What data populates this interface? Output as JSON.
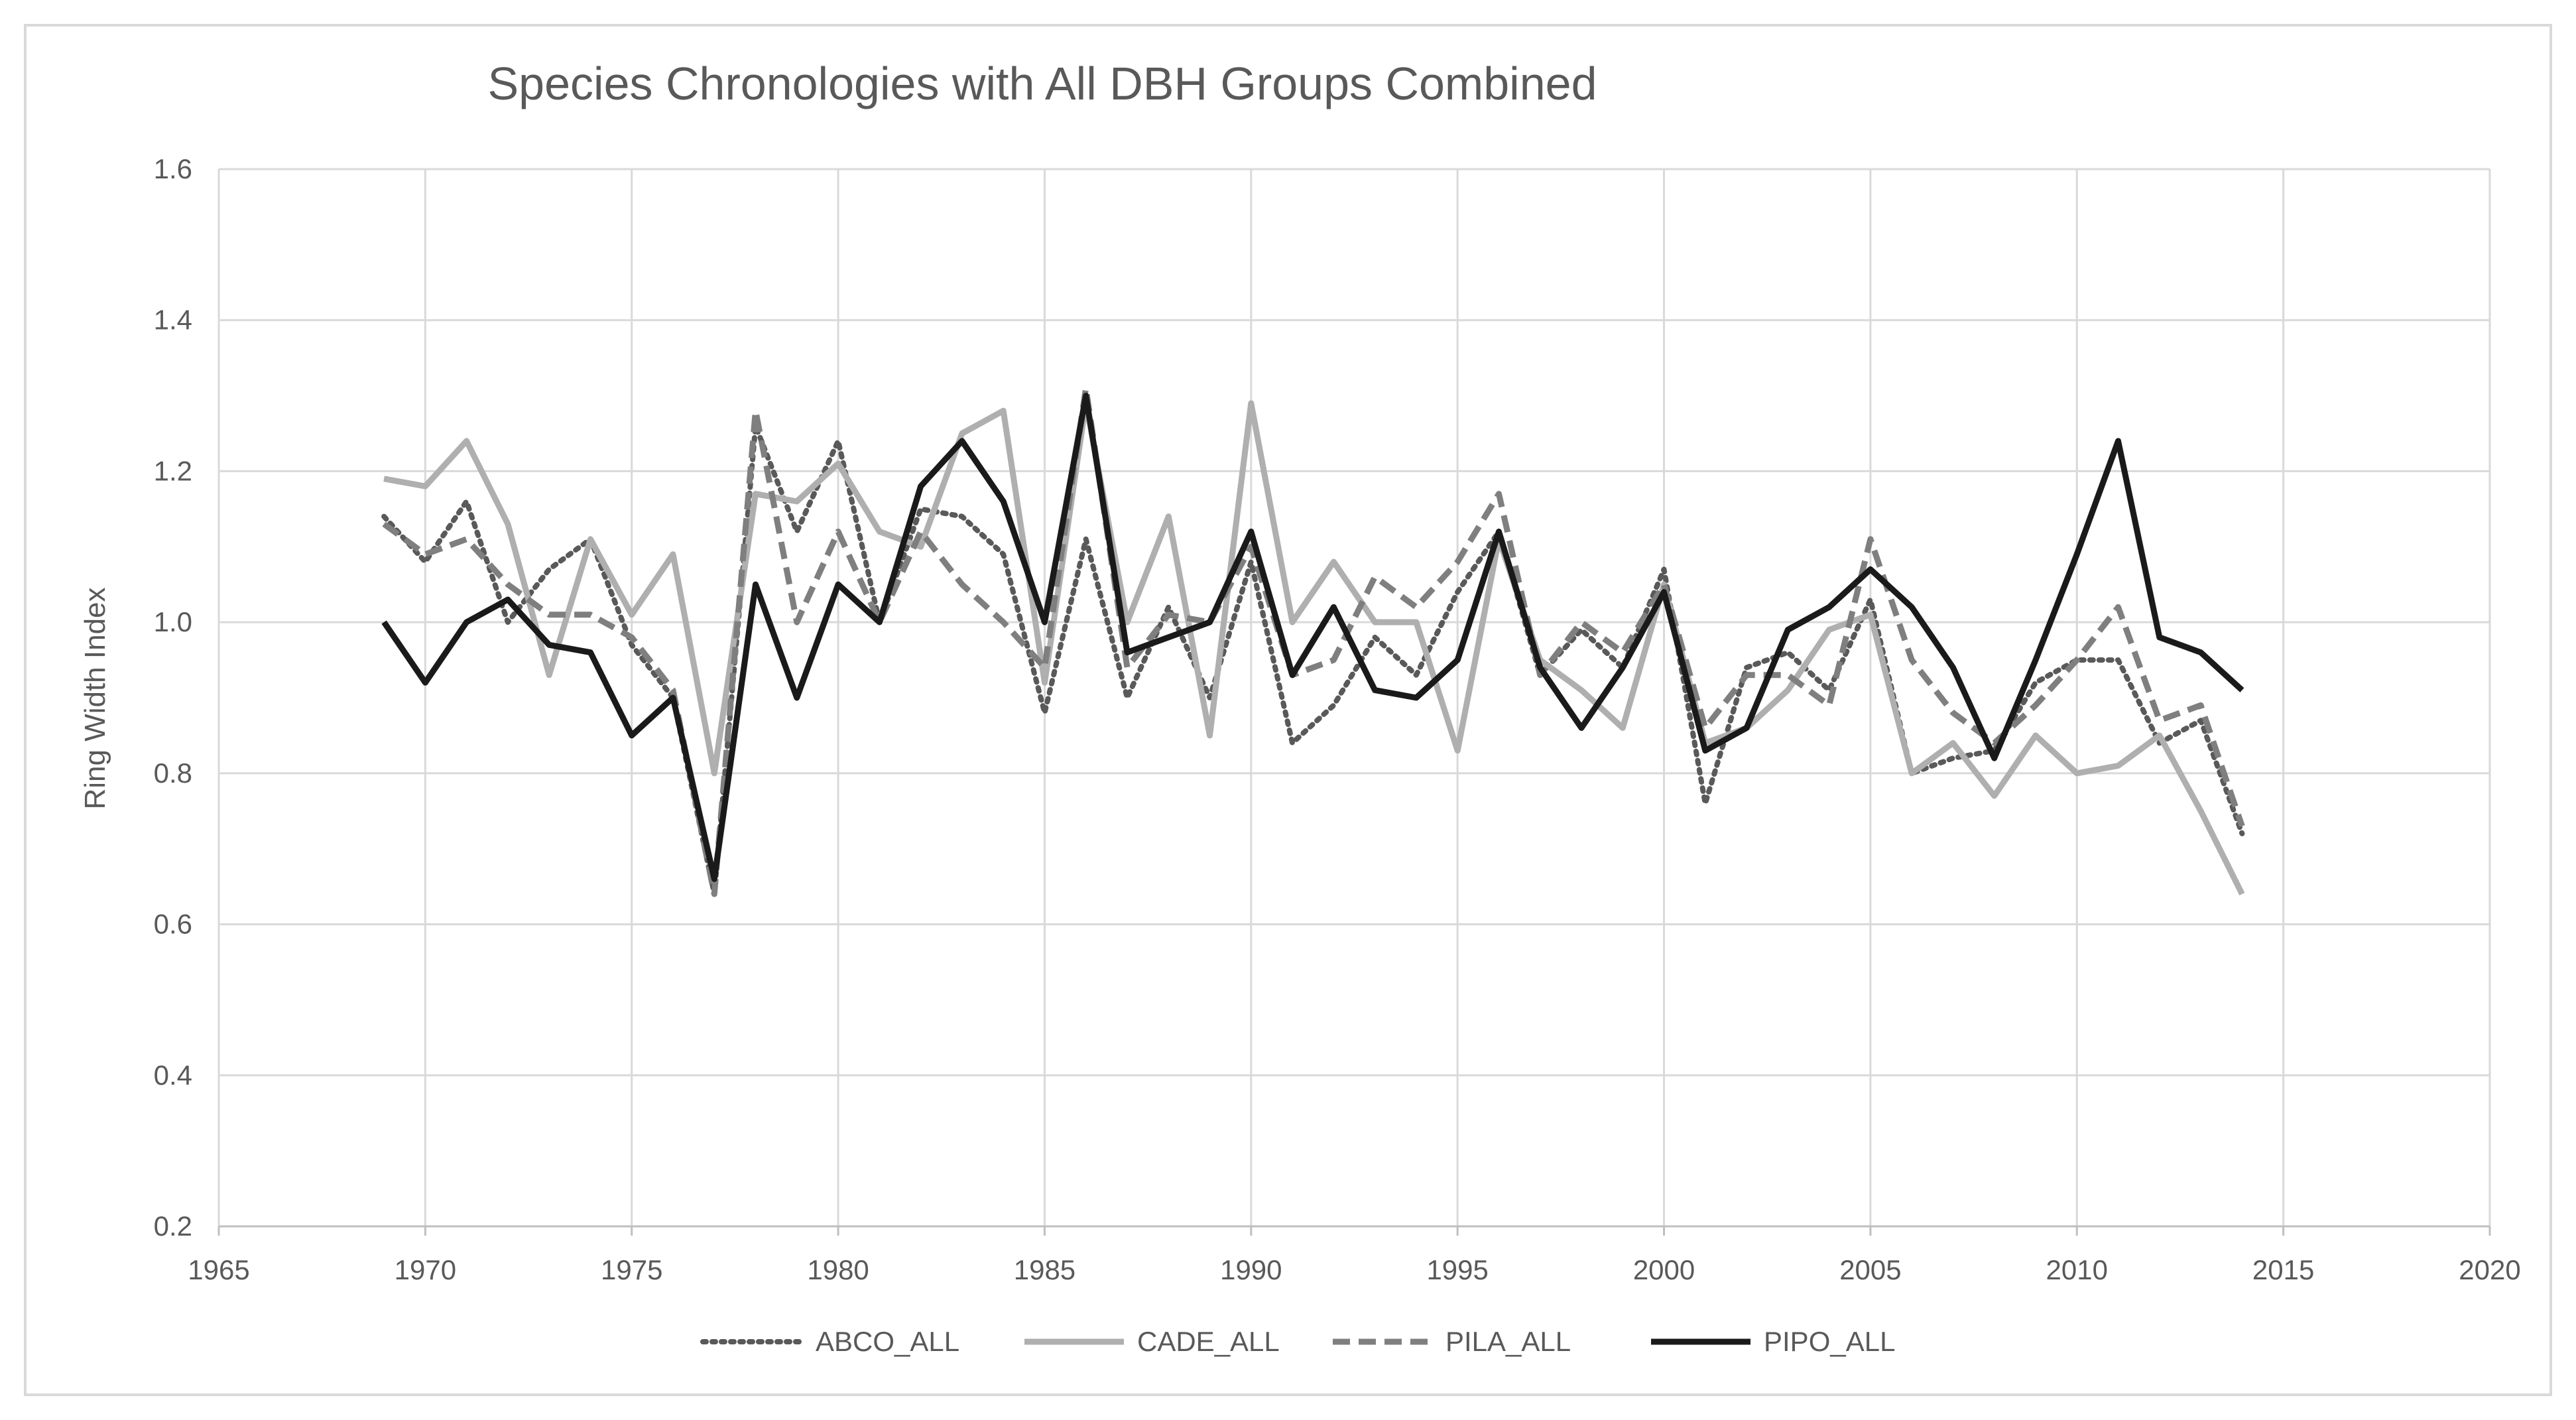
{
  "chart_data": {
    "type": "line",
    "title": "Species Chronologies with All DBH Groups Combined",
    "xlabel": "",
    "ylabel": "Ring Width Index",
    "xlim": [
      1965,
      2020
    ],
    "ylim": [
      0.2,
      1.6
    ],
    "x_ticks": [
      "1965",
      "1970",
      "1975",
      "1980",
      "1985",
      "1990",
      "1995",
      "2000",
      "2005",
      "2010",
      "2015",
      "2020"
    ],
    "y_ticks": [
      "0.2",
      "0.4",
      "0.6",
      "0.8",
      "1.0",
      "1.2",
      "1.4",
      "1.6"
    ],
    "grid": true,
    "legend_position": "bottom",
    "x": [
      1969,
      1970,
      1971,
      1972,
      1973,
      1974,
      1975,
      1976,
      1977,
      1978,
      1979,
      1980,
      1981,
      1982,
      1983,
      1984,
      1985,
      1986,
      1987,
      1988,
      1989,
      1990,
      1991,
      1992,
      1993,
      1994,
      1995,
      1996,
      1997,
      1998,
      1999,
      2000,
      2001,
      2002,
      2003,
      2004,
      2005,
      2006,
      2007,
      2008,
      2009,
      2010,
      2011,
      2012,
      2013,
      2014
    ],
    "series": [
      {
        "name": "ABCO_ALL",
        "color": "#595959",
        "dash": "dotted",
        "values": [
          1.14,
          1.08,
          1.16,
          1.0,
          1.07,
          1.11,
          0.97,
          0.9,
          0.64,
          1.26,
          1.12,
          1.24,
          1.0,
          1.15,
          1.14,
          1.09,
          0.88,
          1.11,
          0.9,
          1.02,
          0.9,
          1.08,
          0.84,
          0.89,
          0.98,
          0.93,
          1.04,
          1.12,
          0.93,
          0.99,
          0.94,
          1.07,
          0.76,
          0.94,
          0.96,
          0.91,
          1.03,
          0.8,
          0.82,
          0.83,
          0.92,
          0.95,
          0.95,
          0.84,
          0.87,
          0.72
        ]
      },
      {
        "name": "CADE_ALL",
        "color": "#afafaf",
        "dash": "solid",
        "values": [
          1.19,
          1.18,
          1.24,
          1.13,
          0.93,
          1.11,
          1.01,
          1.09,
          0.8,
          1.17,
          1.16,
          1.21,
          1.12,
          1.1,
          1.25,
          1.28,
          0.92,
          1.29,
          1.0,
          1.14,
          0.85,
          1.29,
          1.0,
          1.08,
          1.0,
          1.0,
          0.83,
          1.11,
          0.95,
          0.91,
          0.86,
          1.05,
          0.84,
          0.86,
          0.91,
          0.99,
          1.01,
          0.8,
          0.84,
          0.77,
          0.85,
          0.8,
          0.81,
          0.85,
          0.75,
          0.64
        ]
      },
      {
        "name": "PILA_ALL",
        "color": "#7f7f7f",
        "dash": "dashed",
        "values": [
          1.13,
          1.09,
          1.11,
          1.05,
          1.01,
          1.01,
          0.98,
          0.91,
          0.64,
          1.28,
          1.0,
          1.12,
          1.0,
          1.12,
          1.05,
          1.0,
          0.94,
          1.31,
          0.94,
          1.01,
          1.0,
          1.1,
          0.93,
          0.95,
          1.06,
          1.02,
          1.08,
          1.17,
          0.93,
          1.0,
          0.96,
          1.05,
          0.86,
          0.93,
          0.93,
          0.89,
          1.11,
          0.95,
          0.88,
          0.84,
          0.89,
          0.95,
          1.02,
          0.87,
          0.89,
          0.73
        ]
      },
      {
        "name": "PIPO_ALL",
        "color": "#1a1a1a",
        "dash": "solid",
        "values": [
          1.0,
          0.92,
          1.0,
          1.03,
          0.97,
          0.96,
          0.85,
          0.9,
          0.66,
          1.05,
          0.9,
          1.05,
          1.0,
          1.18,
          1.24,
          1.16,
          1.0,
          1.3,
          0.96,
          0.98,
          1.0,
          1.12,
          0.93,
          1.02,
          0.91,
          0.9,
          0.95,
          1.12,
          0.94,
          0.86,
          0.94,
          1.04,
          0.83,
          0.86,
          0.99,
          1.02,
          1.07,
          1.02,
          0.94,
          0.82,
          0.95,
          1.09,
          1.24,
          0.98,
          0.96,
          0.91
        ]
      }
    ]
  }
}
